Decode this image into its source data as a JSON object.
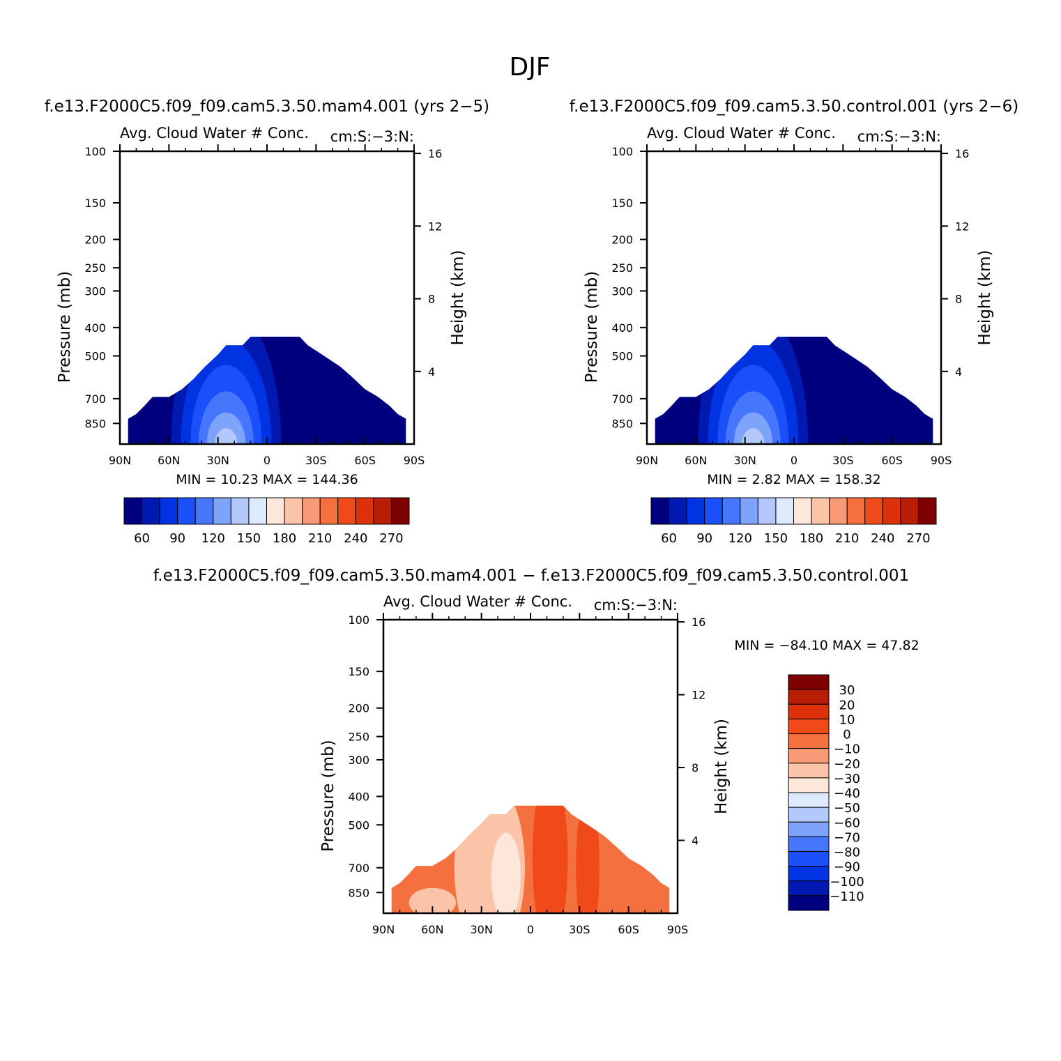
{
  "figure": {
    "title": "DJF",
    "panel_a_title": "f.e13.F2000C5.f09_f09.cam5.3.50.mam4.001 (yrs 2−5)",
    "panel_b_title": "f.e13.F2000C5.f09_f09.cam5.3.50.control.001 (yrs 2−6)",
    "panel_c_title": "f.e13.F2000C5.f09_f09.cam5.3.50.mam4.001 − f.e13.F2000C5.f09_f09.cam5.3.50.control.001"
  },
  "chart_data": [
    {
      "type": "heatmap",
      "left_title": "Avg. Cloud Water # Conc.",
      "right_title": "cm:S:−3:N:",
      "ylabel": "Pressure (mb)",
      "y2label": "Height (km)",
      "x_ticks": [
        "90N",
        "60N",
        "30N",
        "0",
        "30S",
        "60S",
        "90S"
      ],
      "y_ticks": [
        100,
        150,
        200,
        250,
        300,
        400,
        500,
        700,
        850
      ],
      "y2_ticks": [
        16,
        12,
        8,
        4
      ],
      "ylim": [
        100,
        1000
      ],
      "y_scale": "log",
      "stats": {
        "min_label": "MIN =",
        "min": "10.23",
        "max_label": "MAX =",
        "max": "144.36"
      },
      "colorbar": {
        "orientation": "horizontal",
        "colors": [
          "#00007f",
          "#0019b1",
          "#0033e1",
          "#1a4ff9",
          "#4676fc",
          "#7ea3fa",
          "#b3c9fb",
          "#dde9fc",
          "#fde6da",
          "#fbc3a8",
          "#f89a76",
          "#f5703f",
          "#f04a1a",
          "#de300b",
          "#b81e06",
          "#7f0000"
        ],
        "labels": [
          "60",
          "90",
          "120",
          "150",
          "180",
          "210",
          "240",
          "270"
        ]
      }
    },
    {
      "type": "heatmap",
      "left_title": "Avg. Cloud Water # Conc.",
      "right_title": "cm:S:−3:N:",
      "ylabel": "Pressure (mb)",
      "y2label": "Height (km)",
      "x_ticks": [
        "90N",
        "60N",
        "30N",
        "0",
        "30S",
        "60S",
        "90S"
      ],
      "y_ticks": [
        100,
        150,
        200,
        250,
        300,
        400,
        500,
        700,
        850
      ],
      "y2_ticks": [
        16,
        12,
        8,
        4
      ],
      "ylim": [
        100,
        1000
      ],
      "y_scale": "log",
      "stats": {
        "min_label": "MIN =",
        "min": "2.82",
        "max_label": "MAX =",
        "max": "158.32"
      },
      "colorbar": {
        "orientation": "horizontal",
        "colors": [
          "#00007f",
          "#0019b1",
          "#0033e1",
          "#1a4ff9",
          "#4676fc",
          "#7ea3fa",
          "#b3c9fb",
          "#dde9fc",
          "#fde6da",
          "#fbc3a8",
          "#f89a76",
          "#f5703f",
          "#f04a1a",
          "#de300b",
          "#b81e06",
          "#7f0000"
        ],
        "labels": [
          "60",
          "90",
          "120",
          "150",
          "180",
          "210",
          "240",
          "270"
        ]
      }
    },
    {
      "type": "heatmap",
      "left_title": "Avg. Cloud Water # Conc.",
      "right_title": "cm:S:−3:N:",
      "ylabel": "Pressure (mb)",
      "y2label": "Height (km)",
      "x_ticks": [
        "90N",
        "60N",
        "30N",
        "0",
        "30S",
        "60S",
        "90S"
      ],
      "y_ticks": [
        100,
        150,
        200,
        250,
        300,
        400,
        500,
        700,
        850
      ],
      "y2_ticks": [
        16,
        12,
        8,
        4
      ],
      "ylim": [
        100,
        1000
      ],
      "y_scale": "log",
      "stats": {
        "min_label": "MIN =",
        "min": "−84.10",
        "max_label": "MAX =",
        "max": "47.82"
      },
      "colorbar": {
        "orientation": "vertical",
        "colors": [
          "#7f0000",
          "#b81e06",
          "#de300b",
          "#f04a1a",
          "#f5703f",
          "#f89a76",
          "#fbc3a8",
          "#fde6da",
          "#dde9fc",
          "#b3c9fb",
          "#7ea3fa",
          "#4676fc",
          "#1a4ff9",
          "#0033e1",
          "#0019b1",
          "#00007f"
        ],
        "labels": [
          "30",
          "20",
          "10",
          "0",
          "−10",
          "−20",
          "−30",
          "−40",
          "−50",
          "−60",
          "−70",
          "−80",
          "−90",
          "−100",
          "−110"
        ]
      }
    }
  ]
}
